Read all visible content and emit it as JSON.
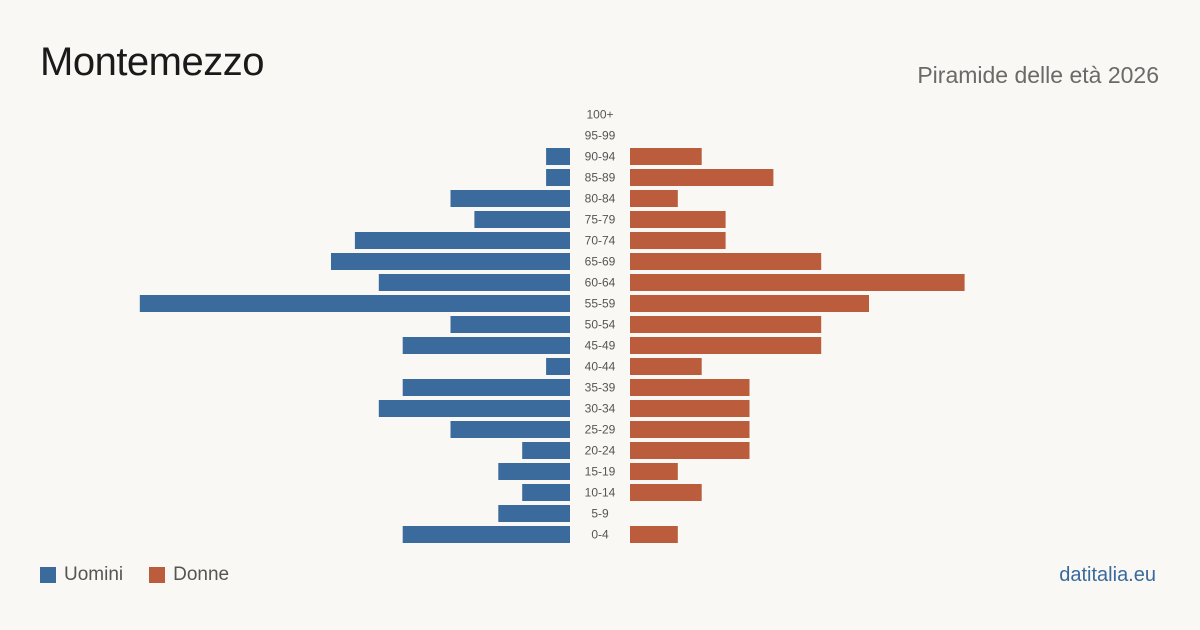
{
  "title": "Montemezzo",
  "subtitle": "Piramide delle età 2026",
  "brand": "datitalia.eu",
  "colors": {
    "men": "#3b6a9c",
    "women": "#bb5c3c"
  },
  "chart_data": {
    "type": "bar",
    "orientation": "horizontal-pyramid",
    "categories": [
      "100+",
      "95-99",
      "90-94",
      "85-89",
      "80-84",
      "75-79",
      "70-74",
      "65-69",
      "60-64",
      "55-59",
      "50-54",
      "45-49",
      "40-44",
      "35-39",
      "30-34",
      "25-29",
      "20-24",
      "15-19",
      "10-14",
      "5-9",
      "0-4"
    ],
    "series": [
      {
        "name": "Uomini",
        "values": [
          0,
          0,
          1,
          1,
          5,
          4,
          9,
          10,
          8,
          18,
          5,
          7,
          1,
          7,
          8,
          5,
          2,
          3,
          2,
          3,
          7
        ]
      },
      {
        "name": "Donne",
        "values": [
          0,
          0,
          3,
          6,
          2,
          4,
          4,
          8,
          14,
          10,
          8,
          8,
          3,
          5,
          5,
          5,
          5,
          2,
          3,
          0,
          2
        ]
      }
    ],
    "legend": "bottom-left",
    "grid": false
  }
}
